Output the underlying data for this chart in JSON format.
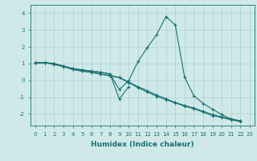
{
  "xlabel": "Humidex (Indice chaleur)",
  "ylabel": "",
  "bg_color": "#cfe9e9",
  "grid_color": "#b0d0d0",
  "line_color": "#1a7070",
  "xlim": [
    -0.5,
    23.5
  ],
  "ylim": [
    -2.7,
    4.5
  ],
  "xticks": [
    0,
    1,
    2,
    3,
    4,
    5,
    6,
    7,
    8,
    9,
    10,
    11,
    12,
    13,
    14,
    15,
    16,
    17,
    18,
    19,
    20,
    21,
    22,
    23
  ],
  "yticks": [
    -2,
    -1,
    0,
    1,
    2,
    3,
    4
  ],
  "series": [
    [
      1.05,
      1.05,
      1.0,
      0.85,
      0.7,
      0.62,
      0.55,
      0.48,
      0.38,
      -0.55,
      -0.02,
      1.12,
      1.95,
      2.72,
      3.8,
      3.3,
      0.18,
      -0.92,
      -1.38,
      -1.72,
      -2.05,
      -2.3,
      -2.42,
      null
    ],
    [
      1.05,
      1.05,
      1.0,
      0.85,
      0.7,
      0.62,
      0.55,
      0.48,
      0.38,
      -1.12,
      -0.38,
      null,
      null,
      null,
      null,
      null,
      null,
      null,
      null,
      null,
      null,
      null,
      null,
      null
    ],
    [
      1.05,
      1.05,
      0.95,
      0.82,
      0.65,
      0.55,
      0.48,
      0.38,
      0.28,
      0.18,
      -0.1,
      -0.38,
      -0.62,
      -0.88,
      -1.1,
      -1.32,
      -1.5,
      -1.65,
      -1.85,
      -2.05,
      -2.18,
      -2.32,
      -2.42,
      null
    ],
    [
      1.05,
      1.05,
      0.95,
      0.82,
      0.65,
      0.55,
      0.48,
      0.36,
      0.26,
      0.16,
      -0.14,
      -0.44,
      -0.7,
      -0.95,
      -1.15,
      -1.35,
      -1.54,
      -1.7,
      -1.9,
      -2.1,
      -2.22,
      -2.36,
      -2.46,
      null
    ]
  ]
}
